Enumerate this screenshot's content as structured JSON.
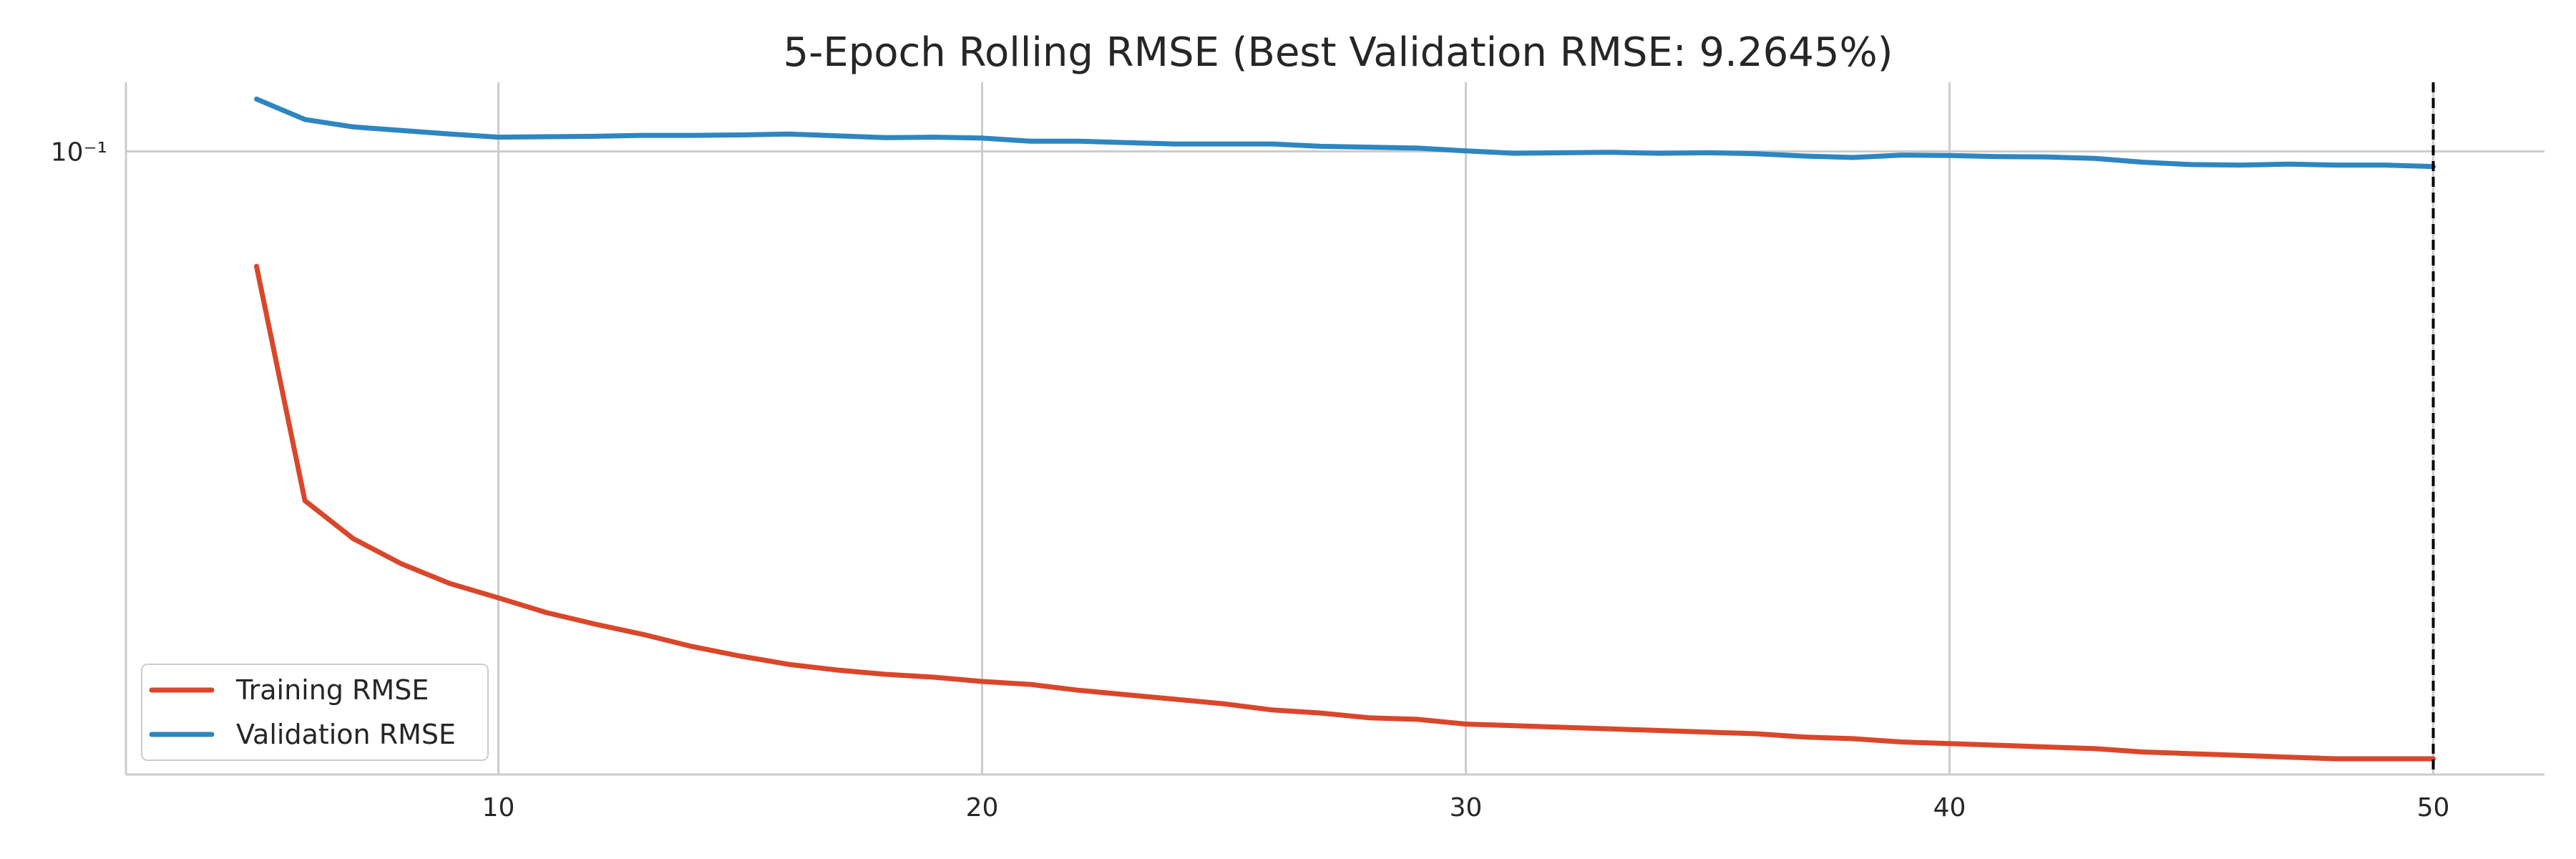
{
  "chart_data": {
    "type": "line",
    "title": "5-Epoch Rolling RMSE (Best Validation RMSE: 9.2645%)",
    "xlabel": "",
    "ylabel": "",
    "xlim": [
      2.3,
      52.3
    ],
    "ylim": [
      0.0262,
      0.116
    ],
    "yscale": "log",
    "grid": "x and y",
    "x_ticks": [
      10,
      20,
      30,
      40,
      50
    ],
    "x_tick_labels": [
      "10",
      "20",
      "30",
      "40",
      "50"
    ],
    "y_ticks": [
      0.1
    ],
    "y_tick_labels": [
      "10⁻¹"
    ],
    "best_epoch": 50,
    "legend": {
      "placement": "lower-left"
    },
    "series": [
      {
        "name": "Training RMSE",
        "color": "#d9472b",
        "x": [
          5,
          6,
          7,
          8,
          9,
          10,
          11,
          12,
          13,
          14,
          15,
          16,
          17,
          18,
          19,
          20,
          21,
          22,
          23,
          24,
          25,
          26,
          27,
          28,
          29,
          30,
          31,
          32,
          33,
          34,
          35,
          36,
          37,
          38,
          39,
          40,
          41,
          42,
          43,
          44,
          45,
          46,
          47,
          48,
          49,
          50
        ],
        "values": [
          0.0781,
          0.0472,
          0.0435,
          0.0412,
          0.0395,
          0.0383,
          0.0371,
          0.0362,
          0.0354,
          0.0345,
          0.0338,
          0.0332,
          0.0328,
          0.0325,
          0.0323,
          0.032,
          0.0318,
          0.0314,
          0.0311,
          0.0308,
          0.0305,
          0.0301,
          0.0299,
          0.0296,
          0.0295,
          0.0292,
          0.0291,
          0.029,
          0.0289,
          0.0288,
          0.0287,
          0.0286,
          0.0284,
          0.0283,
          0.0281,
          0.028,
          0.0279,
          0.0278,
          0.0277,
          0.0275,
          0.0274,
          0.0273,
          0.0272,
          0.0271,
          0.0271,
          0.0271
        ]
      },
      {
        "name": "Validation RMSE",
        "color": "#2e86c1",
        "x": [
          5,
          6,
          7,
          8,
          9,
          10,
          11,
          12,
          13,
          14,
          15,
          16,
          17,
          18,
          19,
          20,
          21,
          22,
          23,
          24,
          25,
          26,
          27,
          28,
          29,
          30,
          31,
          32,
          33,
          34,
          35,
          36,
          37,
          38,
          39,
          40,
          41,
          42,
          43,
          44,
          45,
          46,
          47,
          48,
          49,
          50
        ],
        "values": [
          0.1119,
          0.1071,
          0.1054,
          0.1046,
          0.1038,
          0.1031,
          0.1032,
          0.1033,
          0.1035,
          0.1035,
          0.1036,
          0.1038,
          0.1034,
          0.103,
          0.1031,
          0.1029,
          0.1022,
          0.1022,
          0.1019,
          0.1016,
          0.1016,
          0.1016,
          0.1011,
          0.1009,
          0.1007,
          0.1001,
          0.0996,
          0.0997,
          0.0998,
          0.0996,
          0.0997,
          0.0995,
          0.099,
          0.0987,
          0.0992,
          0.0991,
          0.0989,
          0.0988,
          0.0985,
          0.0977,
          0.0972,
          0.0971,
          0.0973,
          0.0971,
          0.0971,
          0.0968
        ]
      }
    ]
  }
}
